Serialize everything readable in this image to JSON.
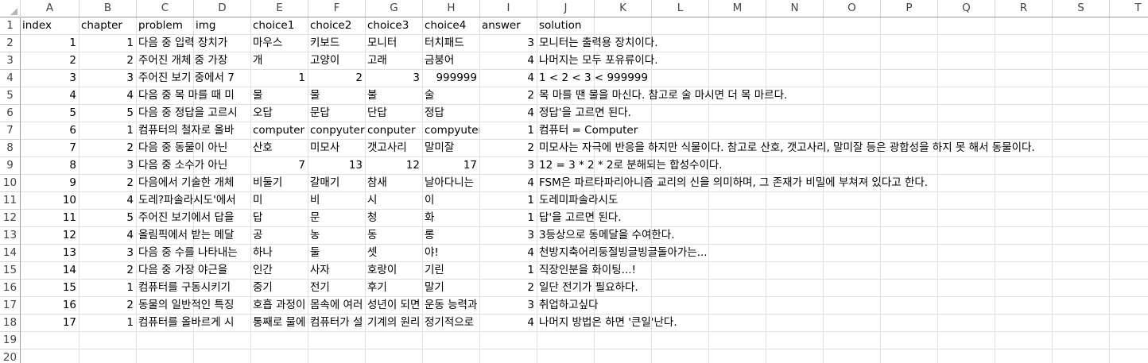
{
  "columns": [
    "A",
    "B",
    "C",
    "D",
    "E",
    "F",
    "G",
    "H",
    "I",
    "J",
    "K",
    "L",
    "M",
    "N",
    "O",
    "P",
    "Q",
    "R",
    "S",
    "T"
  ],
  "rows": [
    {
      "num": "1",
      "cells": [
        "index",
        "chapter",
        "problem",
        "img",
        "choice1",
        "choice2",
        "choice3",
        "choice4",
        "answer",
        "solution"
      ]
    },
    {
      "num": "2",
      "cells": [
        "1",
        "1",
        "다음 중 입력 장치가",
        "",
        "마우스",
        "키보드",
        "모니터",
        "터치패드",
        "3",
        "모니터는 출력용 장치이다."
      ]
    },
    {
      "num": "3",
      "cells": [
        "2",
        "2",
        "주어진 개체 중 가장",
        "",
        "개",
        "고양이",
        "고래",
        "금붕어",
        "4",
        "나머지는 모두 포유류이다."
      ]
    },
    {
      "num": "4",
      "cells": [
        "3",
        "3",
        "주어진 보기 중에서 7",
        "",
        "1",
        "2",
        "3",
        "999999",
        "4",
        "1 < 2 < 3 < 999999"
      ]
    },
    {
      "num": "5",
      "cells": [
        "4",
        "4",
        "다음 중 목 마를 때 미",
        "",
        "물",
        "물",
        "불",
        "술",
        "2",
        "목 마를 땐 물을 마신다. 참고로 술 마시면 더 목 마르다."
      ]
    },
    {
      "num": "6",
      "cells": [
        "5",
        "5",
        "다음 중 정답을 고르시",
        "",
        "오답",
        "문답",
        "단답",
        "정답",
        "4",
        "정답'을 고르면 된다."
      ]
    },
    {
      "num": "7",
      "cells": [
        "6",
        "1",
        "컴퓨터의 철자로 올바",
        "",
        "computer",
        "conpyuter",
        "conputer",
        "compyuter",
        "1",
        "컴퓨터 = Computer"
      ]
    },
    {
      "num": "8",
      "cells": [
        "7",
        "2",
        "다음 중 동물이 아닌",
        "",
        "산호",
        "미모사",
        "갯고사리",
        "말미잘",
        "2",
        "미모사는 자극에 반응을 하지만 식물이다. 참고로 산호, 갯고사리, 말미잘 등은 광합성을 하지 못 해서 동물이다."
      ]
    },
    {
      "num": "9",
      "cells": [
        "8",
        "3",
        "다음 중 소수가 아닌",
        "",
        "7",
        "13",
        "12",
        "17",
        "3",
        "12 = 3 * 2 * 2로 분해되는 합성수이다."
      ]
    },
    {
      "num": "10",
      "cells": [
        "9",
        "2",
        "다음에서 기술한 개체",
        "",
        "비둘기",
        "갈매기",
        "참새",
        "날아다니는",
        "4",
        "FSM은 파르타파리아니즘 교리의 신을 의미하며, 그 존재가 비밀에 부쳐져 있다고 한다."
      ]
    },
    {
      "num": "11",
      "cells": [
        "10",
        "4",
        "도레?파솔라시도'에서",
        "",
        "미",
        "비",
        "시",
        "이",
        "1",
        "도레미파솔라시도"
      ]
    },
    {
      "num": "12",
      "cells": [
        "11",
        "5",
        "주어진 보기에서 답을",
        "",
        "답",
        "문",
        "청",
        "화",
        "1",
        "답'을 고르면 된다."
      ]
    },
    {
      "num": "13",
      "cells": [
        "12",
        "4",
        "올림픽에서 받는 메달",
        "",
        "공",
        "농",
        "동",
        "롱",
        "3",
        "3등상으로 동메달을 수여한다."
      ]
    },
    {
      "num": "14",
      "cells": [
        "13",
        "3",
        "다음 중 수를 나타내는",
        "",
        "하나",
        "둘",
        "셋",
        "야!",
        "4",
        "천방지축어리둥절빙글빙글돌아가는..."
      ]
    },
    {
      "num": "15",
      "cells": [
        "14",
        "2",
        "다음 중 가장 야근을",
        "",
        "인간",
        "사자",
        "호랑이",
        "기린",
        "1",
        "직장인분을 화이팅...!"
      ]
    },
    {
      "num": "16",
      "cells": [
        "15",
        "1",
        "컴퓨터를 구동시키기",
        "",
        "중기",
        "전기",
        "후기",
        "말기",
        "2",
        "일단 전기가 필요하다."
      ]
    },
    {
      "num": "17",
      "cells": [
        "16",
        "2",
        "동물의 일반적인 특징",
        "",
        "호흡 과정이",
        "몸속에 여러",
        "성년이 되면",
        "운동 능력과",
        "3",
        "취업하고싶다"
      ]
    },
    {
      "num": "18",
      "cells": [
        "17",
        "1",
        "컴퓨터를 올바르게 시",
        "",
        "통째로 물에",
        "컴퓨터가 설",
        "기계의 원리",
        "정기적으로",
        "4",
        "나머지 방법은 하면 '큰일'난다."
      ]
    },
    {
      "num": "19",
      "cells": [
        "",
        "",
        "",
        "",
        "",
        "",
        "",
        "",
        "",
        ""
      ]
    },
    {
      "num": "20",
      "cells": [
        "",
        "",
        "",
        "",
        "",
        "",
        "",
        "",
        "",
        ""
      ]
    }
  ]
}
